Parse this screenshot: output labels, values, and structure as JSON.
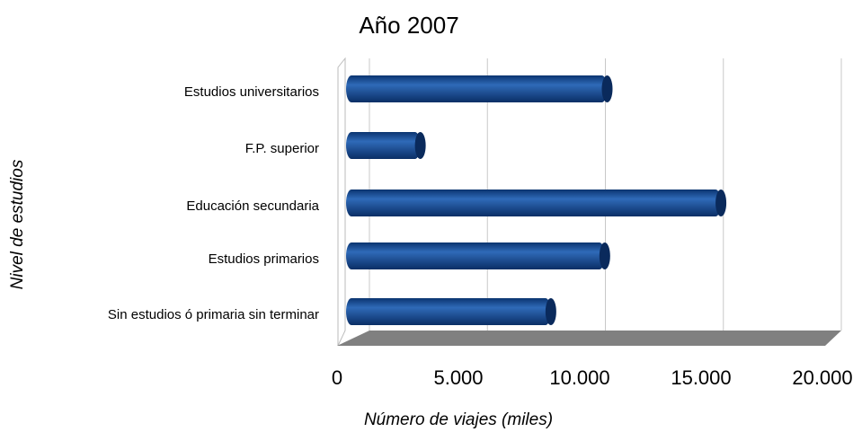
{
  "chart_data": {
    "type": "bar",
    "orientation": "horizontal",
    "title": "Año 2007",
    "x_label": "Número de viajes (miles)",
    "y_label": "Nivel de estudios",
    "categories": [
      "Estudios universitarios",
      "F.P. superior",
      "Educación secundaria",
      "Estudios primarios",
      "Sin estudios ó primaria sin terminar"
    ],
    "values": [
      10600,
      2800,
      15350,
      10500,
      8250
    ],
    "color": "#1a4f98",
    "xlim": [
      0,
      20000
    ],
    "xticks": [
      0,
      {
        "value": 5000,
        "label": "5.000"
      },
      {
        "value": 10000,
        "label": "10.000"
      },
      {
        "value": 15000,
        "label": "15.000"
      },
      {
        "value": 20000,
        "label": "20.000"
      }
    ],
    "grid": true
  }
}
